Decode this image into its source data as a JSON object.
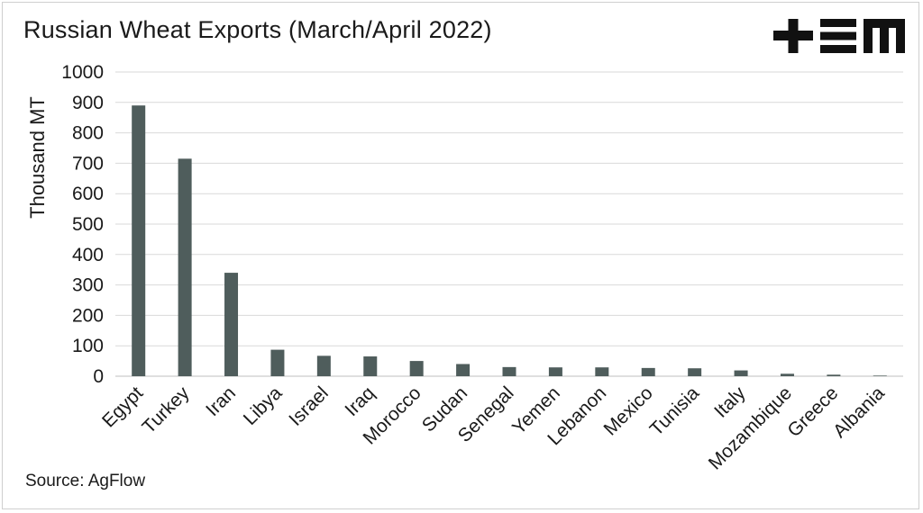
{
  "title": "Russian Wheat Exports (March/April 2022)",
  "source": "Source: AgFlow",
  "logo_text": "+EM",
  "colors": {
    "bar": "#4f5d5c",
    "grid": "#d9d9d9",
    "text": "#1a1a1a",
    "logo": "#111111"
  },
  "chart_data": {
    "type": "bar",
    "title": "Russian Wheat Exports (March/April 2022)",
    "xlabel": "",
    "ylabel": "Thousand MT",
    "ylim": [
      0,
      1000
    ],
    "yticks": [
      0,
      100,
      200,
      300,
      400,
      500,
      600,
      700,
      800,
      900,
      1000
    ],
    "grid": true,
    "categories": [
      "Egypt",
      "Turkey",
      "Iran",
      "Libya",
      "Israel",
      "Iraq",
      "Morocco",
      "Sudan",
      "Senegal",
      "Yemen",
      "Lebanon",
      "Mexico",
      "Tunisia",
      "Italy",
      "Mozambique",
      "Greece",
      "Albania"
    ],
    "values": [
      890,
      715,
      340,
      87,
      67,
      65,
      50,
      40,
      30,
      29,
      29,
      27,
      26,
      19,
      8,
      5,
      2
    ]
  }
}
